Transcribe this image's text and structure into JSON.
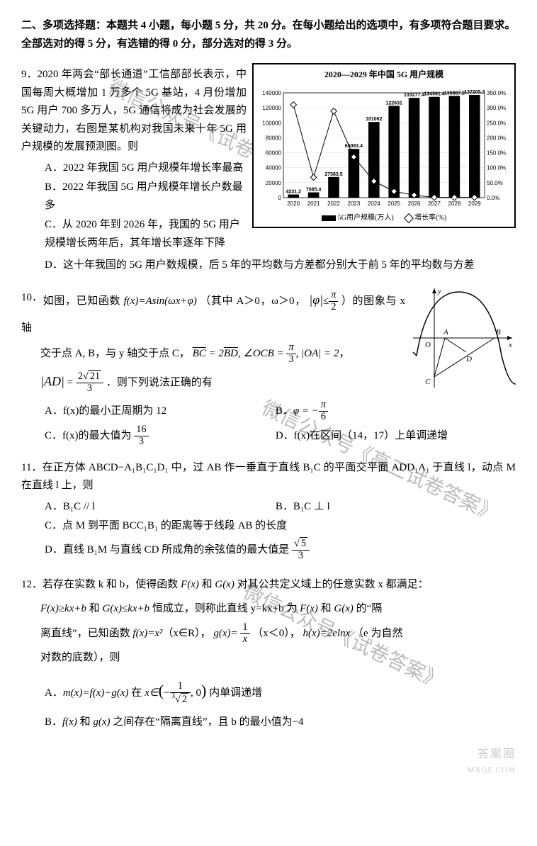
{
  "section": {
    "title": "二、多项选择题：本题共 4 小题，每小题 5 分，共 20 分。在每小题给出的选项中，有多项符合题目要求。全部选对的得 5 分，有选错的得 0 分，部分选对的得 3 分。"
  },
  "q9": {
    "num": "9．",
    "stem_line1": "2020 年两会“部长通道”工信部部长表示，中国每周大概增加 1 万多个 5G 基站，4 月份增加 5G 用户 700 多万人，5G 通信将成为社会发展的关键动力，右图是某机构对我国未来十年 5G 用户规模的发展预测图。则",
    "optA": "A．2022 年我国 5G 用户规模年增长率最高",
    "optB": "B．2022 年我国 5G 用户规模年增长户数最多",
    "optC": "C．从 2020 年到 2026 年，我国的 5G 用户规模增长两年后，其年增长率逐年下降",
    "optD": "D．这十年我国的 5G 用户数规模，后 5 年的平均数与方差都分别大于前 5 年的平均数与方差",
    "chart": {
      "title": "2020—2029 年中国 5G 用户规模",
      "years": [
        "2020",
        "2021",
        "2022",
        "2023",
        "2024",
        "2025",
        "2026",
        "2027",
        "2028",
        "2029"
      ],
      "bars": [
        4231.3,
        7085.4,
        27583.5,
        65083.4,
        101062,
        122631,
        133277.4,
        134591.4,
        135887.2,
        137205.3
      ],
      "growth": [
        310,
        68,
        289,
        136,
        55,
        21,
        8.7,
        1.0,
        1.0,
        1.0
      ],
      "left_ticks": [
        "0",
        "20000",
        "40000",
        "60000",
        "80000",
        "100000",
        "120000",
        "140000"
      ],
      "left_max": 140000,
      "right_ticks": [
        "0.0%",
        "50.0%",
        "100.0%",
        "150.0%",
        "200.0%",
        "250.0%",
        "300.0%",
        "350.0%"
      ],
      "right_max": 350,
      "bar_color": "#000000",
      "diamond_color": "#ffffff",
      "diamond_stroke": "#000000",
      "grid_color": "#e0e0e0",
      "legend_bar": "5G用户规模(万人)",
      "legend_line": "增长率(%)",
      "bar_labels": [
        "4231.3",
        "7085.4",
        "27583.5",
        "65083.4",
        "101062",
        "122631",
        "133277.4",
        "134591.4",
        "135887.2",
        "137205.3"
      ]
    }
  },
  "q10": {
    "num": "10．",
    "stem_p1_a": "如图，已知函数 ",
    "stem_p1_b": "（其中 A＞0，ω＞0，",
    "stem_p1_c": "）的图象与 x 轴",
    "stem_p2_a": "交于点 A, B，与 y 轴交于点 C，",
    "stem_p2_b": "，",
    "stem_p3": "．则下列说法正确的有",
    "optA": "A．f(x)的最小正周期为 12",
    "optB_pre": "B．",
    "optC_pre": "C．f(x)的最大值为 ",
    "optD": "D．f(x)在区间（14，17）上单调递增",
    "graph_labels": {
      "O": "O",
      "A": "A",
      "B": "B",
      "C": "C",
      "D": "D",
      "x": "x",
      "y": "y"
    }
  },
  "q11": {
    "num": "11．",
    "stem": "在正方体 ABCD−A₁B₁C₁D₁ 中，过 AB 作一垂直于直线 B₁C 的平面交平面 ADD₁A₁ 于直线 l，动点 M 在直线 l 上，则",
    "optA": "A．B₁C // l",
    "optB": "B．B₁C ⊥ l",
    "optC": "C．点 M 到平面 BCC₁B₁ 的距离等于线段 AB 的长度",
    "optD_pre": "D．直线 B₁M 与直线 CD 所成角的余弦值的最大值是 "
  },
  "q12": {
    "num": "12．",
    "stem1_a": "若存在实数 k 和 b，使得函数 ",
    "stem1_b": " 和 ",
    "stem1_c": " 对其公共定义域上的任意实数 x 都满足：",
    "stem2_a": " 和 ",
    "stem2_b": " 恒成立，则称此直线 y=kx+b 为 ",
    "stem2_c": " 和 ",
    "stem2_d": " 的“隔",
    "stem3_a": "离直线”，已知函数 ",
    "stem3_b": "（x∈R），",
    "stem3_c": "（x＜0），",
    "stem3_d": "（e 为自然",
    "stem4": "对数的底数），则",
    "f_eq": "f(x)=x²",
    "g_eq_pre": "g(x)= ",
    "h_eq": "h(x)=2elnx",
    "optA_pre": "A．",
    "optA_mid": " 在 ",
    "optA_post": " 内单调递增",
    "mfg": "m(x)=f(x)−g(x)",
    "optB_pre": "B．",
    "optB_mid": " 和 ",
    "optB_post": " 之间存在“隔离直线”，且 b 的最小值为−4",
    "Fx": "F(x)",
    "Gx": "G(x)",
    "Fge": "F(x)≥kx+b",
    "Gle": "G(x)≤kx+b",
    "fx": "f(x)",
    "gx": "g(x)"
  },
  "watermarks": {
    "w1": "微信公众号《试卷答案》",
    "w2": "微信公众号《高三试卷答案》",
    "footer_a": "答案圈",
    "footer_b": "MXQE.COM"
  }
}
